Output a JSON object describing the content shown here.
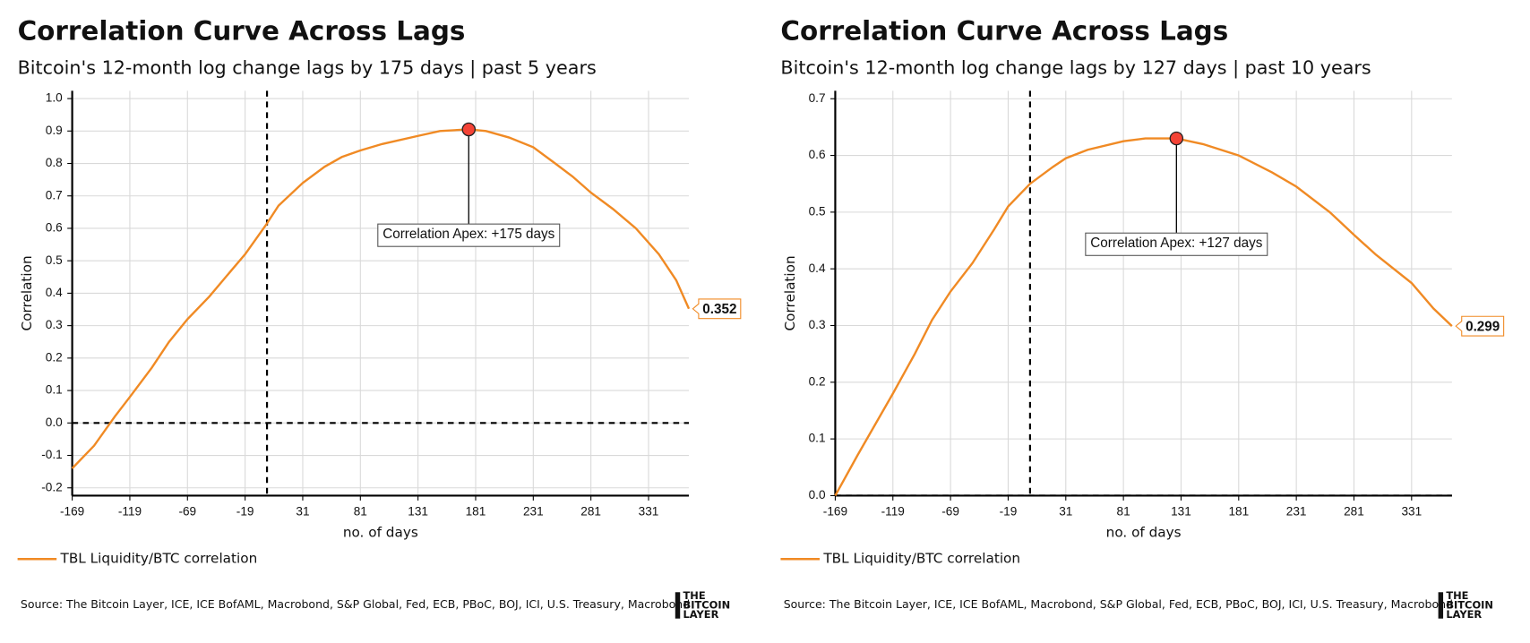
{
  "chart_data": [
    {
      "type": "line",
      "title": "Correlation Curve Across Lags",
      "subtitle": "Bitcoin's 12-month log change lags by 175 days | past 5 years",
      "xlabel": "no. of days",
      "ylabel": "Correlation",
      "x": [
        -169,
        -150,
        -132,
        -119,
        -100,
        -85,
        -69,
        -50,
        -31,
        -19,
        -1,
        10,
        31,
        50,
        65,
        81,
        100,
        131,
        150,
        175,
        190,
        210,
        231,
        250,
        265,
        281,
        300,
        320,
        340,
        355,
        366
      ],
      "series": [
        {
          "name": "TBL Liquidity/BTC correlation",
          "color": "#f08a24",
          "values": [
            -0.14,
            -0.07,
            0.02,
            0.08,
            0.17,
            0.25,
            0.32,
            0.39,
            0.47,
            0.52,
            0.61,
            0.67,
            0.74,
            0.79,
            0.82,
            0.84,
            0.86,
            0.885,
            0.9,
            0.905,
            0.9,
            0.88,
            0.85,
            0.8,
            0.76,
            0.71,
            0.66,
            0.6,
            0.52,
            0.44,
            0.352
          ]
        }
      ],
      "xlim": [
        -169,
        366
      ],
      "ylim": [
        -0.224,
        1.024
      ],
      "xticks": [
        -169,
        -119,
        -69,
        -19,
        31,
        81,
        131,
        181,
        231,
        281,
        331
      ],
      "yticks": [
        -0.2,
        -0.1,
        {
          "value": 0,
          "label": "0.0"
        },
        0.1,
        0.2,
        0.3,
        0.4,
        0.5,
        0.6,
        0.7,
        0.8,
        0.9,
        {
          "value": 1,
          "label": "1.0"
        }
      ],
      "grid": true,
      "reference_lines": {
        "x": 0,
        "y": 0
      },
      "annotation": {
        "text": "Correlation Apex: +175 days",
        "x": 175,
        "y": 0.905
      },
      "source": "Source: The Bitcoin Layer, ICE, ICE BofAML, Macrobond, S&P Global, Fed, ECB, PBoC, BOJ, ICI, U.S. Treasury, Macrobond",
      "logo": [
        "THE",
        "BITCOIN",
        "LAYER"
      ]
    },
    {
      "type": "line",
      "title": "Correlation Curve Across Lags",
      "subtitle": "Bitcoin's 12-month log change lags by 127 days | past 10 years",
      "xlabel": "no. of days",
      "ylabel": "Correlation",
      "x": [
        -169,
        -150,
        -119,
        -100,
        -85,
        -69,
        -50,
        -31,
        -19,
        0,
        20,
        31,
        50,
        81,
        100,
        127,
        150,
        181,
        210,
        231,
        260,
        281,
        300,
        331,
        350,
        366
      ],
      "series": [
        {
          "name": "TBL Liquidity/BTC correlation",
          "color": "#f08a24",
          "values": [
            0.0,
            0.07,
            0.18,
            0.25,
            0.31,
            0.36,
            0.41,
            0.47,
            0.51,
            0.55,
            0.58,
            0.595,
            0.61,
            0.625,
            0.63,
            0.63,
            0.62,
            0.6,
            0.57,
            0.545,
            0.5,
            0.46,
            0.425,
            0.375,
            0.33,
            0.299
          ]
        }
      ],
      "xlim": [
        -169,
        366
      ],
      "ylim": [
        0,
        0.714
      ],
      "xticks": [
        -169,
        -119,
        -69,
        -19,
        31,
        81,
        131,
        181,
        231,
        281,
        331
      ],
      "yticks": [
        {
          "value": 0,
          "label": "0.0"
        },
        0.1,
        0.2,
        0.3,
        0.4,
        0.5,
        0.6,
        0.7
      ],
      "grid": true,
      "reference_lines": {
        "x": 0,
        "y": 0
      },
      "annotation": {
        "text": "Correlation Apex: +127 days",
        "x": 127,
        "y": 0.63
      },
      "source": "Source: The Bitcoin Layer, ICE, ICE BofAML, Macrobond, S&P Global, Fed, ECB, PBoC, BOJ, ICI, U.S. Treasury, Macrobond",
      "logo": [
        "THE",
        "BITCOIN",
        "LAYER"
      ]
    }
  ]
}
